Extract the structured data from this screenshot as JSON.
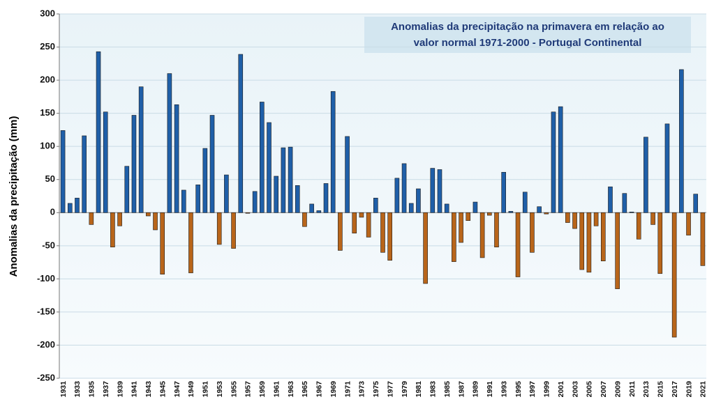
{
  "chart_data": {
    "type": "bar",
    "title": [
      "Anomalias da precipitação na primavera em relação ao",
      "valor normal  1971-2000 - Portugal Continental"
    ],
    "y_label": "Anomalias da precipitação (mm)",
    "categories": [
      "1931",
      null,
      "1933",
      null,
      "1935",
      null,
      "1937",
      null,
      "1939",
      null,
      "1941",
      null,
      "1943",
      null,
      "1945",
      null,
      "1947",
      null,
      "1949",
      null,
      "1951",
      null,
      "1953",
      null,
      "1955",
      null,
      "1957",
      null,
      "1959",
      null,
      "1961",
      null,
      "1963",
      null,
      "1965",
      null,
      "1967",
      null,
      "1969",
      null,
      "1971",
      null,
      "1973",
      null,
      "1975",
      null,
      "1977",
      null,
      "1979",
      null,
      "1981",
      null,
      "1983",
      null,
      "1985",
      null,
      "1987",
      null,
      "1989",
      null,
      "1991",
      null,
      "1993",
      null,
      "1995",
      null,
      "1997",
      null,
      "1999",
      null,
      "2001",
      null,
      "2003",
      null,
      "2005",
      null,
      "2007",
      null,
      "2009",
      null,
      "2011",
      null,
      "2013",
      null,
      "2015",
      null,
      "2017",
      null,
      "2019",
      null,
      "2021"
    ],
    "values": [
      124,
      14,
      22,
      116,
      -18,
      243,
      152,
      -52,
      -20,
      70,
      147,
      190,
      -5,
      -26,
      -93,
      210,
      163,
      34,
      -91,
      42,
      97,
      147,
      -48,
      57,
      -54,
      239,
      -1,
      32,
      167,
      136,
      55,
      98,
      99,
      41,
      -21,
      13,
      3,
      44,
      183,
      -57,
      115,
      -31,
      -7,
      -37,
      22,
      -60,
      -72,
      52,
      74,
      14,
      36,
      -107,
      67,
      65,
      13,
      -74,
      -45,
      -12,
      16,
      -68,
      -4,
      -52,
      61,
      2,
      -97,
      31,
      -60,
      9,
      -2,
      152,
      160,
      -15,
      -24,
      -86,
      -90,
      -20,
      -73,
      39,
      -115,
      29,
      1,
      -40,
      114,
      -18,
      -92,
      134,
      -188,
      216,
      -34,
      28,
      -80
    ],
    "positive_color": "#1f5fa8",
    "negative_color": "#b8651a",
    "ylim": [
      -250,
      300
    ],
    "yticks": [
      -250,
      -200,
      -150,
      -100,
      -50,
      0,
      50,
      100,
      150,
      200,
      250,
      300
    ],
    "grid": true
  }
}
